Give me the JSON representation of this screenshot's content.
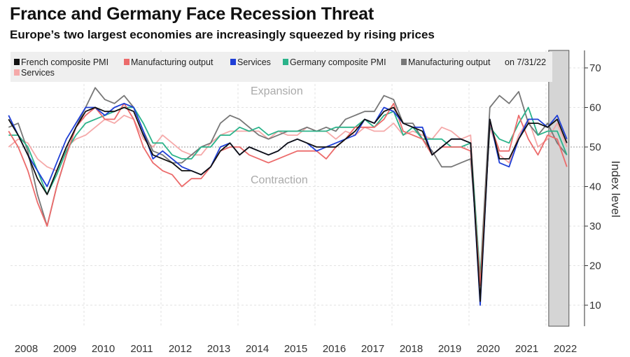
{
  "chart_data": {
    "type": "line",
    "title": "France and Germany Face Recession Threat",
    "subtitle": "Europe’s two largest economies are increasingly squeezed by rising prices",
    "ylabel": "Index level",
    "ylim": [
      5,
      75
    ],
    "yticks": [
      10,
      20,
      30,
      40,
      50,
      60,
      70
    ],
    "xlim": [
      "2008-01",
      "2022-08"
    ],
    "xticks": [
      "2008",
      "2009",
      "2010",
      "2011",
      "2012",
      "2013",
      "2014",
      "2015",
      "2016",
      "2017",
      "2018",
      "2019",
      "2020",
      "2021",
      "2022"
    ],
    "grid": true,
    "reference_line": 50,
    "legend_position": "top",
    "legend_suffix": "on 7/31/22",
    "annotations": {
      "upper": "Expansion",
      "lower": "Contraction"
    },
    "shaded_period": [
      "2022-02",
      "2022-07"
    ],
    "x": [
      "2008-01",
      "2008-04",
      "2008-07",
      "2008-10",
      "2009-01",
      "2009-04",
      "2009-07",
      "2009-10",
      "2010-01",
      "2010-04",
      "2010-07",
      "2010-10",
      "2011-01",
      "2011-04",
      "2011-07",
      "2011-10",
      "2012-01",
      "2012-04",
      "2012-07",
      "2012-10",
      "2013-01",
      "2013-04",
      "2013-07",
      "2013-10",
      "2014-01",
      "2014-04",
      "2014-07",
      "2014-10",
      "2015-01",
      "2015-04",
      "2015-07",
      "2015-10",
      "2016-01",
      "2016-04",
      "2016-07",
      "2016-10",
      "2017-01",
      "2017-04",
      "2017-07",
      "2017-10",
      "2018-01",
      "2018-04",
      "2018-07",
      "2018-10",
      "2019-01",
      "2019-04",
      "2019-07",
      "2019-10",
      "2020-01",
      "2020-04",
      "2020-07",
      "2020-10",
      "2021-01",
      "2021-04",
      "2021-07",
      "2021-10",
      "2022-01",
      "2022-04",
      "2022-07"
    ],
    "series": [
      {
        "name": "French composite PMI",
        "color": "#111111",
        "values": [
          57,
          53,
          48,
          42,
          38,
          44,
          50,
          55,
          59,
          60,
          59,
          59,
          60,
          59,
          53,
          48,
          47,
          46,
          44,
          44,
          43,
          45,
          49,
          51,
          48,
          50,
          49,
          48,
          49,
          51,
          52,
          51,
          50,
          50,
          50,
          52,
          54,
          57,
          56,
          59,
          60,
          56,
          55,
          54,
          48,
          50,
          52,
          52,
          51,
          11,
          57,
          47,
          47,
          52,
          56,
          56,
          55,
          57,
          51
        ]
      },
      {
        "name": "Manufacturing output",
        "color": "#ec6b6b",
        "values": [
          54,
          50,
          44,
          36,
          30,
          40,
          48,
          55,
          58,
          60,
          57,
          57,
          61,
          57,
          50,
          46,
          44,
          43,
          40,
          42,
          42,
          45,
          49,
          50,
          50,
          48,
          47,
          46,
          47,
          48,
          49,
          49,
          49,
          47,
          50,
          52,
          55,
          55,
          55,
          57,
          61,
          54,
          53,
          52,
          48,
          50,
          50,
          50,
          49,
          15,
          56,
          49,
          49,
          58,
          52,
          48,
          53,
          52,
          45
        ]
      },
      {
        "name": "Services",
        "color": "#1f3fd6",
        "values": [
          58,
          53,
          48,
          44,
          40,
          46,
          52,
          56,
          60,
          60,
          58,
          60,
          61,
          60,
          54,
          47,
          49,
          47,
          45,
          44,
          43,
          45,
          50,
          51,
          48,
          50,
          49,
          48,
          49,
          51,
          52,
          51,
          49,
          50,
          51,
          52,
          53,
          57,
          56,
          60,
          59,
          56,
          55,
          55,
          48,
          50,
          52,
          52,
          51,
          10,
          57,
          46,
          45,
          52,
          57,
          57,
          55,
          58,
          52
        ]
      },
      {
        "name": "Germany composite PMI",
        "color": "#2bb38a",
        "values": [
          53,
          53,
          50,
          44,
          38,
          43,
          49,
          53,
          56,
          57,
          58,
          59,
          60,
          60,
          56,
          51,
          51,
          48,
          47,
          47,
          50,
          50,
          53,
          53,
          55,
          54,
          55,
          53,
          54,
          54,
          54,
          54,
          54,
          54,
          55,
          55,
          55,
          57,
          55,
          58,
          59,
          53,
          55,
          52,
          52,
          52,
          50,
          50,
          51,
          17,
          55,
          52,
          51,
          56,
          60,
          53,
          54,
          54,
          48
        ]
      },
      {
        "name": "Manufacturing output",
        "color": "#777777",
        "values": [
          55,
          56,
          49,
          38,
          30,
          40,
          48,
          55,
          60,
          65,
          62,
          61,
          63,
          60,
          54,
          49,
          48,
          46,
          46,
          48,
          50,
          51,
          56,
          58,
          57,
          55,
          53,
          52,
          53,
          54,
          54,
          55,
          54,
          55,
          54,
          57,
          58,
          59,
          59,
          63,
          62,
          56,
          56,
          52,
          49,
          45,
          45,
          46,
          47,
          17,
          60,
          63,
          61,
          64,
          56,
          53,
          56,
          51,
          48
        ]
      },
      {
        "name": "Services",
        "color": "#f5a9a9",
        "values": [
          50,
          52,
          51,
          47,
          45,
          44,
          50,
          52,
          53,
          55,
          57,
          56,
          58,
          57,
          52,
          50,
          53,
          51,
          49,
          48,
          48,
          51,
          53,
          54,
          54,
          54,
          54,
          52,
          54,
          53,
          53,
          55,
          54,
          54,
          52,
          54,
          53,
          55,
          54,
          54,
          56,
          53,
          54,
          53,
          52,
          55,
          54,
          52,
          53,
          16,
          55,
          48,
          46,
          53,
          57,
          50,
          52,
          56,
          50
        ]
      }
    ]
  }
}
